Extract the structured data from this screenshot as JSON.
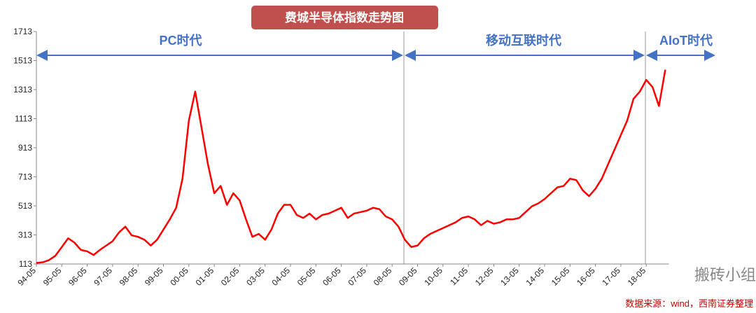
{
  "chart_data": {
    "type": "line",
    "title": "费城半导体指数走势图",
    "annotations": [
      "PC时代",
      "移动互联时代",
      "AIoT时代"
    ],
    "source": "数据来源：wind，西南证券整理",
    "watermark": "搬砖小组",
    "categories": [
      "94-05",
      null,
      null,
      null,
      "95-05",
      null,
      null,
      null,
      "96-05",
      null,
      null,
      null,
      "97-05",
      null,
      null,
      null,
      "98-05",
      null,
      null,
      null,
      "99-05",
      null,
      null,
      null,
      "00-05",
      null,
      null,
      null,
      "01-05",
      null,
      null,
      null,
      "02-05",
      null,
      null,
      null,
      "03-05",
      null,
      null,
      null,
      "04-05",
      null,
      null,
      null,
      "05-05",
      null,
      null,
      null,
      "06-05",
      null,
      null,
      null,
      "07-05",
      null,
      null,
      null,
      "08-05",
      null,
      null,
      null,
      "09-05",
      null,
      null,
      null,
      "10-05",
      null,
      null,
      null,
      "11-05",
      null,
      null,
      null,
      "12-05",
      null,
      null,
      null,
      "13-05",
      null,
      null,
      null,
      "14-05",
      null,
      null,
      null,
      "15-05",
      null,
      null,
      null,
      "16-05",
      null,
      null,
      null,
      "17-05",
      null,
      null,
      null,
      "18-05",
      null,
      null,
      null
    ],
    "values": [
      120,
      125,
      140,
      170,
      230,
      290,
      260,
      210,
      200,
      175,
      210,
      240,
      270,
      330,
      370,
      310,
      300,
      280,
      240,
      280,
      350,
      420,
      500,
      700,
      1100,
      1300,
      1050,
      800,
      600,
      650,
      520,
      600,
      550,
      420,
      300,
      320,
      280,
      350,
      460,
      520,
      520,
      450,
      430,
      460,
      420,
      450,
      460,
      480,
      500,
      430,
      460,
      470,
      480,
      500,
      490,
      440,
      420,
      370,
      280,
      230,
      240,
      290,
      320,
      340,
      360,
      380,
      400,
      430,
      440,
      420,
      380,
      410,
      390,
      400,
      420,
      420,
      430,
      470,
      510,
      530,
      560,
      600,
      640,
      650,
      700,
      690,
      620,
      580,
      630,
      700,
      800,
      900,
      1000,
      1100,
      1250,
      1300,
      1380,
      1330,
      1200,
      1450
    ],
    "color": "#ff0000",
    "ylim": [
      113,
      1713
    ],
    "yticks": [
      113,
      313,
      513,
      713,
      913,
      1113,
      1313,
      1513,
      1713
    ]
  }
}
